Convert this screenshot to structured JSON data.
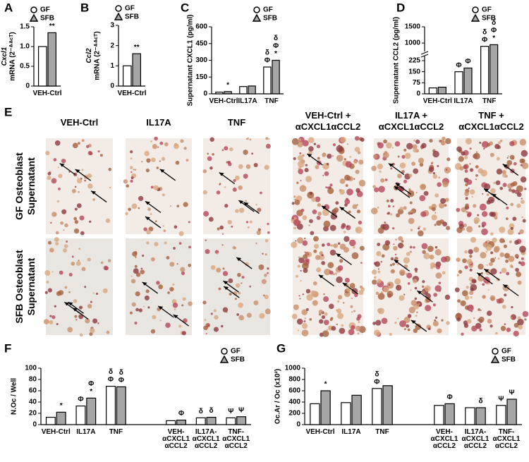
{
  "chart_data": [
    {
      "type": "bar",
      "panel": "A",
      "ylabel_gene": "Cxcl1",
      "ylabel": "mRNA (2⁻ᐞᐞᶜᵀ)",
      "categories": [
        "VEH-Ctrl"
      ],
      "series": [
        {
          "name": "GF",
          "marker": "circle",
          "color": "#ffffff",
          "values": [
            1.0
          ],
          "annotations": [
            null
          ]
        },
        {
          "name": "SFB",
          "marker": "triangle",
          "color": "#a6a6a6",
          "values": [
            1.35
          ],
          "annotations": [
            [
              "**"
            ]
          ]
        }
      ],
      "ylim": [
        0,
        1.5
      ],
      "yticks": [
        0,
        0.5,
        {
          "value": 1,
          "label": "1.0"
        },
        1.5
      ]
    },
    {
      "type": "bar",
      "panel": "B",
      "ylabel_gene": "Ccl2",
      "ylabel": "mRNA (2⁻ᐞᐞᶜᵀ)",
      "categories": [
        "VEH-Ctrl"
      ],
      "series": [
        {
          "name": "GF",
          "marker": "circle",
          "color": "#ffffff",
          "values": [
            1.0
          ],
          "annotations": [
            null
          ]
        },
        {
          "name": "SFB",
          "marker": "triangle",
          "color": "#a6a6a6",
          "values": [
            1.6
          ],
          "annotations": [
            [
              "**"
            ]
          ]
        }
      ],
      "ylim": [
        0,
        3
      ],
      "yticks": [
        0,
        1,
        2,
        3
      ]
    },
    {
      "type": "bar",
      "panel": "C",
      "ylabel": "Supernatant CXCL1 (pg/ml)",
      "categories": [
        "VEH-Ctrl",
        "IL17A",
        "TNF"
      ],
      "series": [
        {
          "name": "GF",
          "marker": "circle",
          "color": "#ffffff",
          "values": [
            15,
            65,
            240
          ],
          "annotations": [
            null,
            null,
            [
              "δ",
              "Φ"
            ]
          ]
        },
        {
          "name": "SFB",
          "marker": "triangle",
          "color": "#a6a6a6",
          "values": [
            20,
            70,
            300
          ],
          "annotations": [
            [
              "*"
            ],
            null,
            [
              "δ",
              "Φ",
              "*"
            ]
          ]
        }
      ],
      "ylim": [
        0,
        600
      ],
      "yticks": [
        0,
        150,
        300,
        450,
        600
      ]
    },
    {
      "type": "bar",
      "panel": "D",
      "ylabel": "Supernatant CCL2 (pg/ml)",
      "categories": [
        "VEH-Ctrl",
        "IL17A",
        "TNF"
      ],
      "series": [
        {
          "name": "GF",
          "marker": "circle",
          "color": "#ffffff",
          "values": [
            40,
            150,
            900
          ],
          "annotations": [
            null,
            [
              "Φ"
            ],
            [
              "δ",
              "Φ"
            ]
          ]
        },
        {
          "name": "SFB",
          "marker": "triangle",
          "color": "#a6a6a6",
          "values": [
            45,
            175,
            950
          ],
          "annotations": [
            null,
            [
              "Φ"
            ],
            [
              "δ",
              "Φ",
              "*"
            ]
          ]
        }
      ],
      "ylim": [
        0,
        1500
      ],
      "axis_break": [
        250,
        800
      ],
      "yticks": [
        0,
        75,
        150,
        225,
        1000,
        1500
      ]
    },
    {
      "type": "bar",
      "panel": "F",
      "ylabel": "N.Oc / Well",
      "categories": [
        "VEH-Ctrl",
        "IL17A",
        "TNF",
        "VEH-\nαCXCL1\nαCCL2",
        "IL17A-\nαCXCL1\nαCCL2",
        "TNF-\nαCXCL1\nαCCL2"
      ],
      "series": [
        {
          "name": "GF",
          "marker": "circle",
          "color": "#ffffff",
          "values": [
            13,
            33,
            68,
            7,
            12,
            12
          ],
          "annotations": [
            null,
            [
              "Φ"
            ],
            [
              "δ",
              "Φ"
            ],
            null,
            [
              "δ"
            ],
            [
              "Ψ"
            ]
          ]
        },
        {
          "name": "SFB",
          "marker": "triangle",
          "color": "#a6a6a6",
          "values": [
            22,
            47,
            67,
            8,
            13,
            14
          ],
          "annotations": [
            [
              "*"
            ],
            [
              "Φ",
              "*"
            ],
            [
              "δ",
              "Φ"
            ],
            [
              "Φ"
            ],
            [
              "δ"
            ],
            [
              "Ψ"
            ]
          ]
        }
      ],
      "ylim": [
        0,
        100
      ],
      "yticks": [
        0,
        20,
        40,
        60,
        80,
        100
      ]
    },
    {
      "type": "bar",
      "panel": "G",
      "ylabel": "Oc.Ar / Oc (x10²)",
      "categories": [
        "VEH-Ctrl",
        "IL17A",
        "TNF",
        "VEH-\nαCXCL1\nαCCL2",
        "IL17A-\nαCXCL1\nαCCL2",
        "TNF-\nαCXCL1\nαCCL2"
      ],
      "series": [
        {
          "name": "GF",
          "marker": "circle",
          "color": "#ffffff",
          "values": [
            370,
            390,
            640,
            340,
            300,
            340
          ],
          "annotations": [
            null,
            null,
            [
              "δ",
              "Φ"
            ],
            null,
            null,
            [
              "Ψ"
            ]
          ]
        },
        {
          "name": "SFB",
          "marker": "triangle",
          "color": "#a6a6a6",
          "values": [
            600,
            520,
            690,
            370,
            300,
            450
          ],
          "annotations": [
            [
              "*"
            ],
            null,
            null,
            [
              "Φ"
            ],
            [
              "δ"
            ],
            [
              "Ψ"
            ]
          ]
        }
      ],
      "ylim": [
        0,
        1000
      ],
      "yticks": [
        0,
        200,
        400,
        600,
        800,
        1000
      ]
    }
  ],
  "image_grid": {
    "panel": "E",
    "columns": [
      "VEH-Ctrl",
      "IL17A",
      "TNF",
      "VEH-Ctrl +\nαCXCL1αCCL2",
      "IL17A +\nαCXCL1αCCL2",
      "TNF +\nαCXCL1αCCL2"
    ],
    "rows": [
      "GF Osteoblast\nSupernatant",
      "SFB Osteoblast\nSupernatant"
    ]
  }
}
